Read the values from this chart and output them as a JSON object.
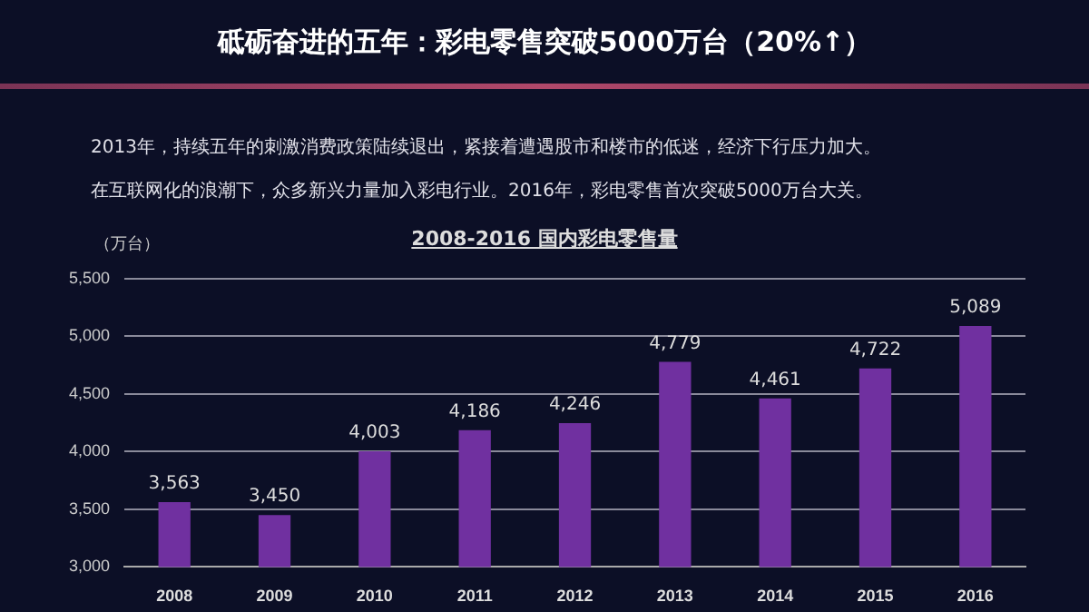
{
  "chart_data": {
    "type": "bar",
    "title": "砥砺奋进的五年：彩电零售突破5000万台（20%↑）",
    "subtitle": "2008-2016 国内彩电零售量",
    "ylabel": "（万台）",
    "annotations": [
      "2013年，持续五年的刺激消费政策陆续退出，紧接着遭遇股市和楼市的低迷，经济下行压力加大。",
      "在互联网化的浪潮下，众多新兴力量加入彩电行业。2016年，彩电零售首次突破5000万台大关。"
    ],
    "categories": [
      "2008",
      "2009",
      "2010",
      "2011",
      "2012",
      "2013",
      "2014",
      "2015",
      "2016"
    ],
    "values": [
      3563,
      3450,
      4003,
      4186,
      4246,
      4779,
      4461,
      4722,
      5089
    ],
    "value_labels": [
      "3,563",
      "3,450",
      "4,003",
      "4,186",
      "4,246",
      "4,779",
      "4,461",
      "4,722",
      "5,089"
    ],
    "color": "#7030a0",
    "ylim": [
      3000,
      5500
    ],
    "yticks": [
      {
        "value": 3000,
        "label": "3,000"
      },
      {
        "value": 3500,
        "label": "3,500"
      },
      {
        "value": 4000,
        "label": "4,000"
      },
      {
        "value": 4500,
        "label": "4,500"
      },
      {
        "value": 5000,
        "label": "5,000"
      },
      {
        "value": 5500,
        "label": "5,500"
      }
    ],
    "grid": "y",
    "legend": false
  }
}
